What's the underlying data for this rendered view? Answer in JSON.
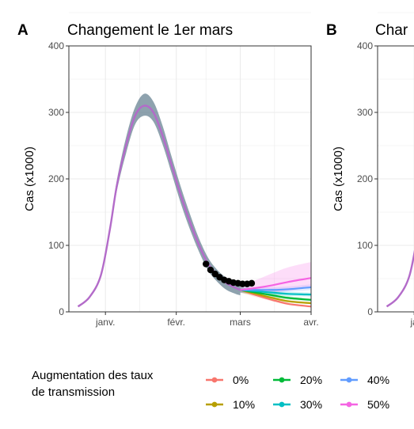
{
  "chart_data": [
    {
      "type": "line",
      "tag": "A",
      "title": "Changement le 1er mars",
      "xlabel": "",
      "ylabel": "Cas (x1000)",
      "ylim": [
        0,
        400
      ],
      "yticks": [
        "0",
        "100",
        "200",
        "300",
        "400"
      ],
      "xticks": [
        "janv.",
        "févr.",
        "mars",
        "avr."
      ],
      "xlim": [
        "2020-12-16",
        "2021-04-01"
      ],
      "grid": true,
      "baseline": {
        "name": "ensemble",
        "x": [
          "2020-12-20",
          "2020-12-25",
          "2020-12-30",
          "2021-01-03",
          "2021-01-06",
          "2021-01-10",
          "2021-01-14",
          "2021-01-18",
          "2021-01-22",
          "2021-01-26",
          "2021-01-30",
          "2021-02-03",
          "2021-02-07",
          "2021-02-11",
          "2021-02-15",
          "2021-02-19",
          "2021-02-23",
          "2021-02-27",
          "2021-03-01"
        ],
        "y": [
          8,
          22,
          55,
          125,
          190,
          250,
          295,
          310,
          300,
          265,
          220,
          175,
          135,
          100,
          72,
          55,
          43,
          36,
          33
        ],
        "lower": [
          8,
          22,
          55,
          120,
          182,
          238,
          282,
          295,
          286,
          252,
          208,
          163,
          124,
          90,
          62,
          45,
          33,
          27,
          25
        ],
        "upper": [
          8,
          22,
          55,
          130,
          198,
          262,
          308,
          328,
          316,
          280,
          233,
          188,
          147,
          110,
          81,
          63,
          51,
          44,
          41
        ]
      },
      "observed": {
        "x": [
          "2021-02-14",
          "2021-02-16",
          "2021-02-18",
          "2021-02-20",
          "2021-02-22",
          "2021-02-24",
          "2021-02-26",
          "2021-02-28",
          "2021-03-02",
          "2021-03-04",
          "2021-03-06"
        ],
        "y": [
          72,
          63,
          57,
          52,
          48,
          46,
          44,
          43,
          42,
          42,
          43
        ]
      },
      "scenarios_x": [
        "2021-03-01",
        "2021-03-08",
        "2021-03-15",
        "2021-03-22",
        "2021-04-01"
      ],
      "series": [
        {
          "name": "0%",
          "color": "#F8766D",
          "values": [
            33,
            25,
            18,
            12,
            8
          ]
        },
        {
          "name": "10%",
          "color": "#B79F00",
          "values": [
            33,
            27,
            21,
            16,
            13
          ]
        },
        {
          "name": "20%",
          "color": "#00BA38",
          "values": [
            33,
            29,
            25,
            21,
            18
          ]
        },
        {
          "name": "30%",
          "color": "#00BFC4",
          "values": [
            33,
            31,
            29,
            27,
            26
          ]
        },
        {
          "name": "40%",
          "color": "#619CFF",
          "values": [
            33,
            33,
            33,
            34,
            37
          ]
        },
        {
          "name": "50%",
          "color": "#F564E3",
          "values": [
            33,
            36,
            40,
            45,
            51
          ],
          "upper": [
            40,
            48,
            58,
            67,
            75
          ]
        }
      ]
    },
    {
      "type": "line",
      "tag": "B",
      "title": "Char",
      "xlabel": "",
      "ylabel": "Cas (x1000)",
      "ylim": [
        0,
        400
      ],
      "yticks": [
        "0",
        "100",
        "200",
        "300",
        "400"
      ],
      "xticks": [
        "ja"
      ],
      "xlim": [
        "2020-12-16",
        "2021-04-01"
      ],
      "grid": true,
      "baseline": {
        "x": [
          "2020-12-20",
          "2020-12-25",
          "2020-12-30",
          "2021-01-03"
        ],
        "y": [
          8,
          22,
          55,
          125
        ]
      }
    }
  ],
  "legend": {
    "title_line1": "Augmentation des taux",
    "title_line2": "de transmission",
    "position": "bottom",
    "items": [
      {
        "label": "0%",
        "color": "#F8766D"
      },
      {
        "label": "10%",
        "color": "#B79F00"
      },
      {
        "label": "20%",
        "color": "#00BA38"
      },
      {
        "label": "30%",
        "color": "#00BFC4"
      },
      {
        "label": "40%",
        "color": "#619CFF"
      },
      {
        "label": "50%",
        "color": "#F564E3"
      }
    ]
  },
  "colors": {
    "baseline_line": "#B36BC9",
    "baseline_band": "#5E7A8C",
    "observed": "#000000",
    "grid": "#EBEBEB",
    "panel_border": "#333333"
  }
}
